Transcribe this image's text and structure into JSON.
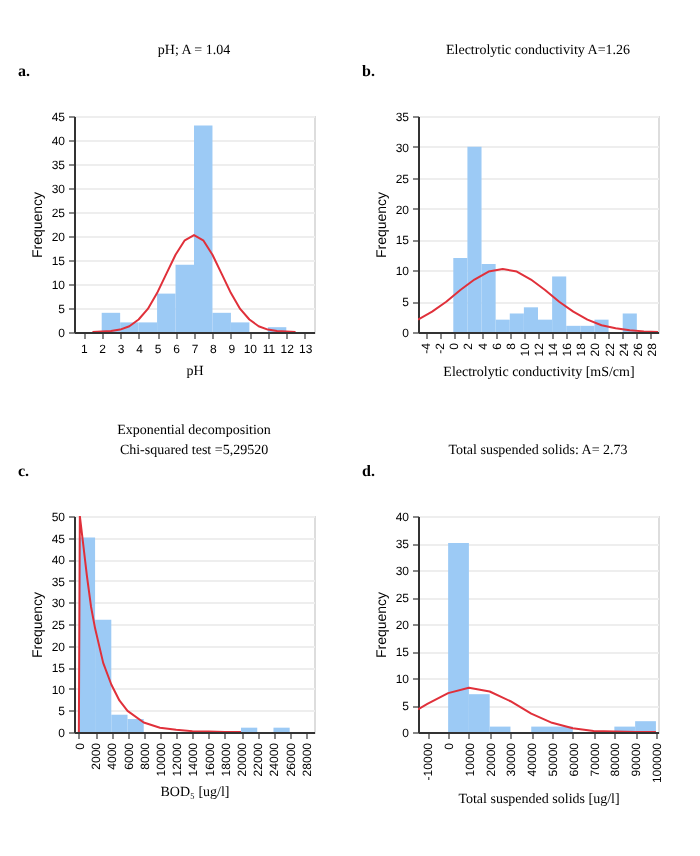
{
  "chart_data": [
    {
      "type": "histogram",
      "title": "pH; A = 1.04",
      "xlabel": "pH",
      "ylabel": "Frequency",
      "annotations": [
        "a."
      ],
      "xlim": [
        0.5,
        13.5
      ],
      "xticks": [
        1,
        2,
        3,
        4,
        5,
        6,
        7,
        8,
        9,
        10,
        11,
        12,
        13
      ],
      "ylim": [
        0,
        45
      ],
      "yticks": [
        0,
        5,
        10,
        15,
        20,
        25,
        30,
        35,
        40,
        45
      ],
      "grid": "y",
      "series": [
        {
          "type": "histogram",
          "color": "#9ccaf5",
          "bins": [
            2,
            3,
            4,
            5,
            6,
            7,
            8,
            9,
            10,
            11,
            12
          ],
          "values": [
            4,
            2,
            2,
            8,
            14,
            43,
            4,
            2,
            0,
            1
          ]
        },
        {
          "type": "line",
          "color": "#e0303a",
          "x": [
            1.5,
            2,
            2.5,
            3,
            3.5,
            4,
            4.5,
            5,
            5.5,
            6,
            6.5,
            7,
            7.5,
            8,
            8.5,
            9,
            9.5,
            10,
            10.5,
            11,
            11.5,
            12,
            12.5
          ],
          "values": [
            0,
            0.1,
            0.2,
            0.5,
            1.2,
            2.6,
            4.8,
            8.1,
            12.1,
            16.1,
            19.1,
            20.2,
            19.1,
            16.1,
            12.1,
            8.1,
            4.8,
            2.6,
            1.2,
            0.5,
            0.2,
            0.1,
            0
          ]
        }
      ]
    },
    {
      "type": "histogram",
      "title": "Electrolytic conductivity   A=1.26",
      "xlabel": "Electrolytic conductivity  [mS/cm]",
      "ylabel": "Frequency",
      "annotations": [
        "b."
      ],
      "xlim": [
        -5,
        29
      ],
      "xticks": [
        -4,
        -2,
        0,
        2,
        4,
        6,
        8,
        10,
        12,
        14,
        16,
        18,
        20,
        22,
        24,
        26,
        28
      ],
      "ylim": [
        0,
        35
      ],
      "yticks": [
        0,
        5,
        10,
        15,
        20,
        25,
        30,
        35
      ],
      "grid": "y",
      "series": [
        {
          "type": "histogram",
          "color": "#9ccaf5",
          "bins": [
            0,
            2,
            4,
            6,
            8,
            10,
            12,
            14,
            16,
            18,
            20,
            22,
            24,
            26
          ],
          "values": [
            12,
            30,
            11,
            2,
            3,
            4,
            2,
            9,
            1,
            1,
            2,
            0,
            3
          ]
        },
        {
          "type": "line",
          "color": "#e0303a",
          "x": [
            -5,
            -3,
            -1,
            1,
            3,
            5,
            7,
            9,
            11,
            13,
            15,
            17,
            19,
            21,
            23,
            25,
            27,
            29
          ],
          "values": [
            2.0,
            3.3,
            4.9,
            6.8,
            8.5,
            9.8,
            10.2,
            9.8,
            8.5,
            6.8,
            4.9,
            3.3,
            2.0,
            1.1,
            0.6,
            0.3,
            0.1,
            0
          ]
        }
      ]
    },
    {
      "type": "histogram",
      "title": "Exponential decomposition",
      "subtitle": "Chi-squared test =5,29520",
      "xlabel": "BOD₅ [ug/l]",
      "ylabel": "Frequency",
      "annotations": [
        "c."
      ],
      "xlim": [
        -600,
        29000
      ],
      "xticks": [
        0,
        2000,
        4000,
        6000,
        8000,
        10000,
        12000,
        14000,
        16000,
        18000,
        20000,
        22000,
        24000,
        26000,
        28000
      ],
      "ylim": [
        0,
        50
      ],
      "yticks": [
        0,
        5,
        10,
        15,
        20,
        25,
        30,
        35,
        40,
        45,
        50
      ],
      "grid": "y",
      "series": [
        {
          "type": "histogram",
          "color": "#9ccaf5",
          "bins": [
            0,
            2000,
            4000,
            6000,
            8000,
            10000,
            12000,
            14000,
            16000,
            18000,
            20000,
            22000,
            24000,
            26000
          ],
          "values": [
            45,
            26,
            4,
            3,
            0,
            0,
            0,
            0,
            0,
            0,
            1,
            0,
            1
          ]
        },
        {
          "type": "line",
          "color": "#e0303a",
          "x": [
            0,
            120,
            500,
            1000,
            1500,
            2000,
            3000,
            4000,
            5000,
            6000,
            8000,
            10000,
            12000,
            14000,
            16000,
            18000,
            20000
          ],
          "values": [
            0,
            50,
            44,
            36,
            29,
            24,
            16,
            11,
            7.3,
            4.9,
            2.2,
            1.0,
            0.5,
            0.2,
            0.1,
            0,
            0
          ]
        }
      ]
    },
    {
      "type": "histogram",
      "title": "Total suspended solids: A= 2.73",
      "xlabel": "Total suspended solids [ug/l]",
      "ylabel": "Frequency",
      "annotations": [
        "d."
      ],
      "xlim": [
        -14500,
        101000
      ],
      "xticks": [
        -10000,
        0,
        10000,
        20000,
        30000,
        40000,
        50000,
        60000,
        70000,
        80000,
        90000,
        100000
      ],
      "ylim": [
        0,
        40
      ],
      "yticks": [
        0,
        5,
        10,
        15,
        20,
        25,
        30,
        35,
        40
      ],
      "grid": "y",
      "series": [
        {
          "type": "histogram",
          "color": "#9ccaf5",
          "bins": [
            0,
            10000,
            20000,
            30000,
            40000,
            50000,
            60000,
            70000,
            80000,
            90000,
            100000
          ],
          "values": [
            35,
            7,
            1,
            0,
            1,
            1,
            0,
            0,
            1,
            2
          ]
        },
        {
          "type": "line",
          "color": "#e0303a",
          "x": [
            -14500,
            -10000,
            0,
            10000,
            20000,
            30000,
            40000,
            50000,
            60000,
            70000,
            80000,
            90000,
            100000
          ],
          "values": [
            4.2,
            5.2,
            7.2,
            8.2,
            7.5,
            5.7,
            3.4,
            1.7,
            0.7,
            0.2,
            0.1,
            0,
            0
          ]
        }
      ]
    }
  ]
}
